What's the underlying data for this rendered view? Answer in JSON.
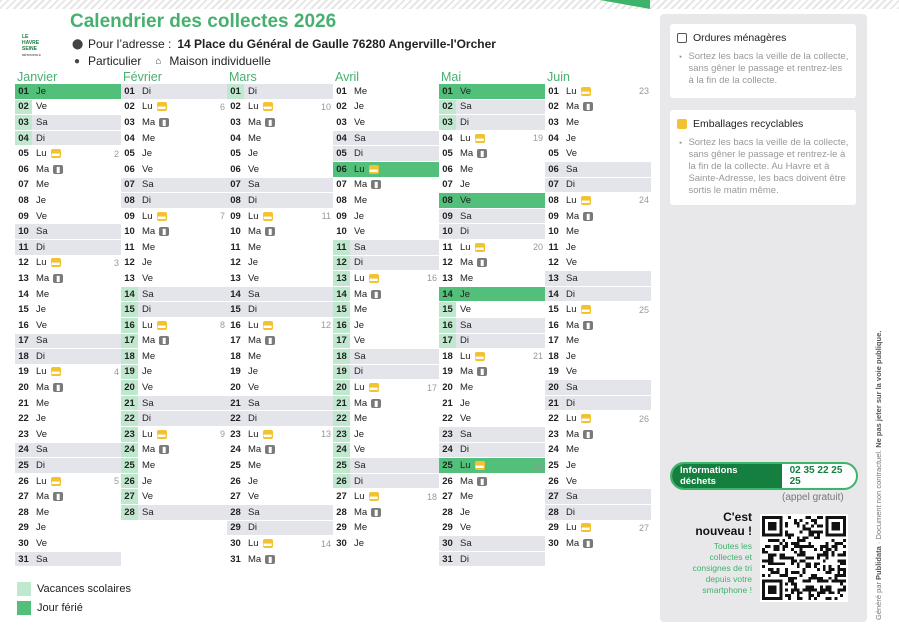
{
  "header": {
    "title": "Calendrier des collectes 2026",
    "address_prefix": "Pour l’adresse :",
    "address": "14 Place du Général de Gaulle 76280 Angerville-l'Orcher",
    "profile_type": "Particulier",
    "housing_type": "Maison individuelle",
    "logo_lines": [
      "LE",
      "HAVRE",
      "SEINE",
      "MÉTROPOLE"
    ]
  },
  "colors": {
    "accent": "#47b06f",
    "holiday": "#52c07a",
    "vacation": "#bfe8cf",
    "weekend": "#e4e5ea",
    "recycle": "#f2c230",
    "household": "#7a7a7a",
    "dark_green": "#157f3f"
  },
  "icons": {
    "recycle": "yellow-bin-icon",
    "household": "grey-bin-icon",
    "location": "pin-icon",
    "person": "person-icon",
    "house": "house-icon",
    "clock": "clock-icon"
  },
  "months": [
    {
      "name": "Janvier",
      "start_dow": 4,
      "days": 31,
      "holidays": [
        1
      ],
      "vacation": [
        1,
        2,
        3,
        4
      ],
      "weeknums": {
        "5": "2",
        "12": "3",
        "19": "4",
        "26": "5"
      }
    },
    {
      "name": "Février",
      "start_dow": 0,
      "days": 28,
      "holidays": [],
      "vacation": [
        14,
        15,
        16,
        17,
        18,
        19,
        20,
        21,
        22,
        23,
        24,
        25,
        26,
        27,
        28
      ],
      "weeknums": {
        "2": "6",
        "9": "7",
        "16": "8",
        "23": "9"
      }
    },
    {
      "name": "Mars",
      "start_dow": 0,
      "days": 31,
      "holidays": [],
      "vacation": [
        1
      ],
      "weeknums": {
        "2": "10",
        "9": "11",
        "16": "12",
        "23": "13",
        "30": "14"
      }
    },
    {
      "name": "Avril",
      "start_dow": 3,
      "days": 30,
      "holidays": [
        6
      ],
      "vacation": [
        11,
        12,
        13,
        14,
        15,
        16,
        17,
        18,
        19,
        20,
        21,
        22,
        23,
        24,
        25,
        26
      ],
      "weeknums": {
        "13": "16",
        "20": "17",
        "27": "18"
      }
    },
    {
      "name": "Mai",
      "start_dow": 5,
      "days": 31,
      "holidays": [
        1,
        8,
        14,
        25
      ],
      "vacation": [
        1,
        2,
        3,
        14,
        15,
        16,
        17
      ],
      "weeknums": {
        "4": "19",
        "11": "20",
        "18": "21",
        "25": "22"
      }
    },
    {
      "name": "Juin",
      "start_dow": 1,
      "days": 30,
      "holidays": [],
      "vacation": [],
      "weeknums": {
        "1": "23",
        "8": "24",
        "15": "25",
        "22": "26",
        "29": "27"
      }
    }
  ],
  "day_abbr": [
    "Di",
    "Lu",
    "Ma",
    "Me",
    "Je",
    "Ve",
    "Sa"
  ],
  "legend": {
    "vacation": "Vacances scolaires",
    "holiday": "Jour férié"
  },
  "cards": {
    "household": {
      "title": "Ordures ménagères",
      "text": "Sortez les bacs la veille de la collecte, sans gêner le passage et rentrez-les à la fin de la collecte."
    },
    "recycle": {
      "title": "Emballages recyclables",
      "text": "Sortez les bacs la veille de la collecte, sans gêner le passage et rentrez-le à la fin de la collecte. Au Havre et à Sainte-Adresse, les bacs doivent être sortis le matin même."
    }
  },
  "info": {
    "label": "Informations déchets",
    "phone": "02 35 22 25 25",
    "note": "(appel gratuit)"
  },
  "promo": {
    "title": "C'est nouveau !",
    "text": "Toutes les collectes et consignes de tri depuis votre smartphone !"
  },
  "side_text": {
    "generated": "Généré par",
    "brand": "Publidata",
    "disclaimer": "· Document non contractuel.",
    "warning": "Ne pas jeter sur la voie publique."
  }
}
